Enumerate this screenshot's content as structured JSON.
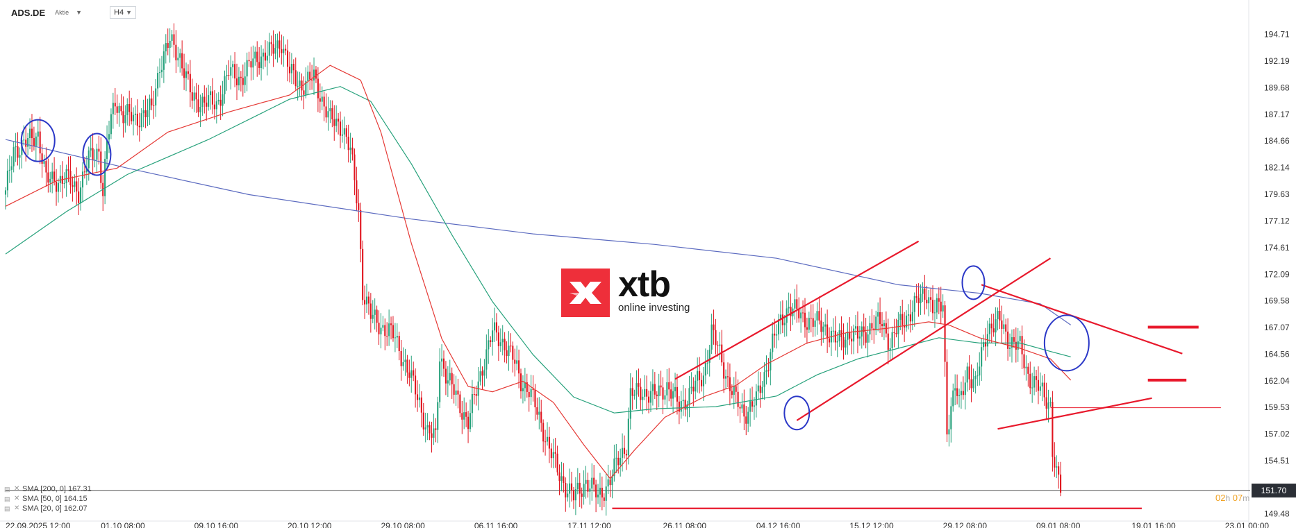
{
  "header": {
    "symbol": "ADS.DE",
    "symbol_type": "Aktie",
    "timeframe": "H4"
  },
  "legend": [
    {
      "label": "SMA [200, 0] 167.31",
      "color": "#5c6bc0"
    },
    {
      "label": "SMA [50, 0] 164.15",
      "color": "#26a17b"
    },
    {
      "label": "SMA [20, 0] 162.07",
      "color": "#e53935"
    }
  ],
  "logo": {
    "wordmark": "xtb",
    "tagline": "online investing"
  },
  "price_tag": "151.70",
  "countdown": {
    "hours": "02",
    "h": "h",
    "minutes": "07",
    "m": "m"
  },
  "colors": {
    "up": "#26a17b",
    "down": "#e0141e",
    "sma200": "#5c6bc0",
    "sma50": "#26a17b",
    "sma20": "#e53935",
    "drawing": "#e8192c",
    "circle": "#2a37c7",
    "brand": "#ee2f3a"
  },
  "chart_data": {
    "type": "candlestick",
    "y_ticks": [
      194.71,
      192.19,
      189.68,
      187.17,
      184.66,
      182.14,
      179.63,
      177.12,
      174.61,
      172.09,
      169.58,
      167.07,
      164.56,
      162.04,
      159.53,
      157.02,
      154.51,
      151.7,
      149.48
    ],
    "ylim": [
      149.0,
      196.0
    ],
    "x_ticks": [
      {
        "label": "22.09.2025  12:00",
        "bar": 0
      },
      {
        "label": "01.10  08:00",
        "bar": 47
      },
      {
        "label": "09.10  16:00",
        "bar": 93
      },
      {
        "label": "20.10  12:00",
        "bar": 139
      },
      {
        "label": "29.10  08:00",
        "bar": 185
      },
      {
        "label": "06.11  16:00",
        "bar": 231
      },
      {
        "label": "17.11  12:00",
        "bar": 277
      },
      {
        "label": "26.11  08:00",
        "bar": 324
      },
      {
        "label": "04.12  16:00",
        "bar": 370
      },
      {
        "label": "15.12  12:00",
        "bar": 416
      },
      {
        "label": "29.12  08:00",
        "bar": 462
      },
      {
        "label": "09.01  08:00",
        "bar": 508
      },
      {
        "label": "19.01  16:00",
        "bar": 555
      },
      {
        "label": "23.01  00:00",
        "bar": 601
      }
    ],
    "bar_count": 610,
    "current_price": 151.7,
    "anchors": [
      [
        0,
        179.6
      ],
      [
        4,
        183.9
      ],
      [
        10,
        184.4
      ],
      [
        16,
        185.4
      ],
      [
        20,
        180.9
      ],
      [
        30,
        181.1
      ],
      [
        36,
        180.0
      ],
      [
        41,
        182.9
      ],
      [
        46,
        183.9
      ],
      [
        48,
        179.6
      ],
      [
        50,
        184.5
      ],
      [
        54,
        188.6
      ],
      [
        58,
        187.1
      ],
      [
        64,
        186.8
      ],
      [
        72,
        187.6
      ],
      [
        76,
        191.9
      ],
      [
        81,
        194.0
      ],
      [
        86,
        192.7
      ],
      [
        92,
        188.6
      ],
      [
        98,
        188.4
      ],
      [
        104,
        188.1
      ],
      [
        110,
        191.1
      ],
      [
        116,
        190.6
      ],
      [
        124,
        192.6
      ],
      [
        130,
        192.9
      ],
      [
        136,
        194.1
      ],
      [
        140,
        191.1
      ],
      [
        146,
        189.9
      ],
      [
        152,
        190.6
      ],
      [
        160,
        186.6
      ],
      [
        166,
        186.1
      ],
      [
        170,
        183.6
      ],
      [
        174,
        178.1
      ],
      [
        176,
        170.6
      ],
      [
        180,
        168.1
      ],
      [
        186,
        167.1
      ],
      [
        192,
        166.1
      ],
      [
        198,
        163.1
      ],
      [
        204,
        160.1
      ],
      [
        208,
        157.1
      ],
      [
        212,
        156.6
      ],
      [
        214,
        164.6
      ],
      [
        218,
        162.1
      ],
      [
        222,
        160.6
      ],
      [
        228,
        158.1
      ],
      [
        232,
        161.1
      ],
      [
        236,
        164.1
      ],
      [
        240,
        166.6
      ],
      [
        246,
        165.6
      ],
      [
        250,
        164.1
      ],
      [
        254,
        162.1
      ],
      [
        258,
        161.1
      ],
      [
        264,
        158.1
      ],
      [
        268,
        155.6
      ],
      [
        272,
        153.6
      ],
      [
        276,
        152.1
      ],
      [
        280,
        151.0
      ],
      [
        286,
        152.6
      ],
      [
        292,
        151.1
      ],
      [
        298,
        152.6
      ],
      [
        302,
        154.6
      ],
      [
        306,
        156.1
      ],
      [
        308,
        160.6
      ],
      [
        314,
        161.1
      ],
      [
        320,
        160.6
      ],
      [
        326,
        161.6
      ],
      [
        332,
        159.6
      ],
      [
        338,
        161.1
      ],
      [
        344,
        162.6
      ],
      [
        348,
        166.6
      ],
      [
        352,
        164.6
      ],
      [
        356,
        162.1
      ],
      [
        360,
        160.1
      ],
      [
        364,
        159.0
      ],
      [
        370,
        160.1
      ],
      [
        374,
        162.6
      ],
      [
        378,
        165.6
      ],
      [
        382,
        167.6
      ],
      [
        386,
        169.1
      ],
      [
        392,
        168.1
      ],
      [
        398,
        167.6
      ],
      [
        404,
        167.1
      ],
      [
        410,
        165.6
      ],
      [
        416,
        166.6
      ],
      [
        420,
        166.1
      ],
      [
        426,
        167.1
      ],
      [
        432,
        167.6
      ],
      [
        436,
        165.6
      ],
      [
        440,
        167.1
      ],
      [
        446,
        168.6
      ],
      [
        450,
        169.6
      ],
      [
        454,
        170.4
      ],
      [
        458,
        168.6
      ],
      [
        462,
        169.1
      ],
      [
        464,
        157.6
      ],
      [
        468,
        161.6
      ],
      [
        470,
        159.6
      ],
      [
        474,
        163.1
      ],
      [
        478,
        161.6
      ],
      [
        484,
        167.1
      ],
      [
        490,
        167.6
      ],
      [
        494,
        166.1
      ],
      [
        500,
        165.1
      ],
      [
        504,
        162.6
      ],
      [
        508,
        161.6
      ],
      [
        512,
        160.6
      ],
      [
        515,
        159.9
      ],
      [
        516,
        155.6
      ],
      [
        518,
        153.1
      ],
      [
        520,
        151.7
      ]
    ],
    "blank_after_bar": 515,
    "series": [
      {
        "name": "SMA [200, 0]",
        "points": [
          [
            0,
            184.8
          ],
          [
            60,
            182.1
          ],
          [
            120,
            179.6
          ],
          [
            200,
            177.3
          ],
          [
            260,
            175.9
          ],
          [
            320,
            174.9
          ],
          [
            380,
            173.6
          ],
          [
            440,
            171.1
          ],
          [
            480,
            170.3
          ],
          [
            510,
            169.3
          ],
          [
            525,
            167.3
          ]
        ]
      },
      {
        "name": "SMA [50, 0]",
        "points": [
          [
            0,
            174.0
          ],
          [
            30,
            178.0
          ],
          [
            60,
            181.5
          ],
          [
            100,
            184.8
          ],
          [
            140,
            188.6
          ],
          [
            165,
            189.8
          ],
          [
            180,
            188.4
          ],
          [
            200,
            182.5
          ],
          [
            220,
            175.8
          ],
          [
            240,
            169.5
          ],
          [
            260,
            164.5
          ],
          [
            280,
            160.5
          ],
          [
            300,
            159.0
          ],
          [
            320,
            159.4
          ],
          [
            350,
            159.6
          ],
          [
            380,
            160.6
          ],
          [
            400,
            162.6
          ],
          [
            420,
            164.1
          ],
          [
            440,
            165.1
          ],
          [
            460,
            166.1
          ],
          [
            480,
            165.6
          ],
          [
            500,
            165.6
          ],
          [
            515,
            164.8
          ],
          [
            525,
            164.3
          ]
        ]
      },
      {
        "name": "SMA [20, 0]",
        "points": [
          [
            0,
            178.5
          ],
          [
            25,
            180.9
          ],
          [
            55,
            182.1
          ],
          [
            80,
            185.5
          ],
          [
            110,
            187.4
          ],
          [
            140,
            189.0
          ],
          [
            160,
            191.8
          ],
          [
            175,
            190.4
          ],
          [
            185,
            185.5
          ],
          [
            200,
            175.0
          ],
          [
            215,
            166.0
          ],
          [
            228,
            161.5
          ],
          [
            240,
            161.0
          ],
          [
            255,
            162.0
          ],
          [
            270,
            160.0
          ],
          [
            285,
            156.0
          ],
          [
            298,
            152.8
          ],
          [
            310,
            155.5
          ],
          [
            325,
            158.6
          ],
          [
            345,
            160.6
          ],
          [
            360,
            161.6
          ],
          [
            375,
            163.6
          ],
          [
            395,
            165.6
          ],
          [
            415,
            166.6
          ],
          [
            435,
            167.0
          ],
          [
            455,
            167.6
          ],
          [
            465,
            167.3
          ],
          [
            480,
            166.1
          ],
          [
            500,
            165.1
          ],
          [
            515,
            164.1
          ],
          [
            525,
            162.1
          ]
        ]
      }
    ],
    "trendlines": [
      [
        [
          330,
          162.2
        ],
        [
          450,
          175.2
        ]
      ],
      [
        [
          390,
          158.3
        ],
        [
          515,
          173.6
        ]
      ],
      [
        [
          481,
          171.1
        ],
        [
          580,
          164.6
        ]
      ],
      [
        [
          489,
          157.5
        ],
        [
          565,
          160.4
        ]
      ],
      [
        [
          299,
          150.0
        ],
        [
          560,
          150.0
        ]
      ]
    ],
    "level_markers": [
      [
        563,
        588,
        167.1
      ],
      [
        563,
        582,
        162.1
      ]
    ],
    "price_line": {
      "from_bar": 515,
      "to_bar": 599,
      "value": 159.5
    },
    "circles": [
      [
        16,
        184.7,
        24,
        30
      ],
      [
        45,
        183.4,
        20,
        30
      ],
      [
        390,
        159.0,
        18,
        24
      ],
      [
        477,
        171.3,
        16,
        24
      ],
      [
        523,
        165.6,
        32,
        40
      ]
    ]
  }
}
